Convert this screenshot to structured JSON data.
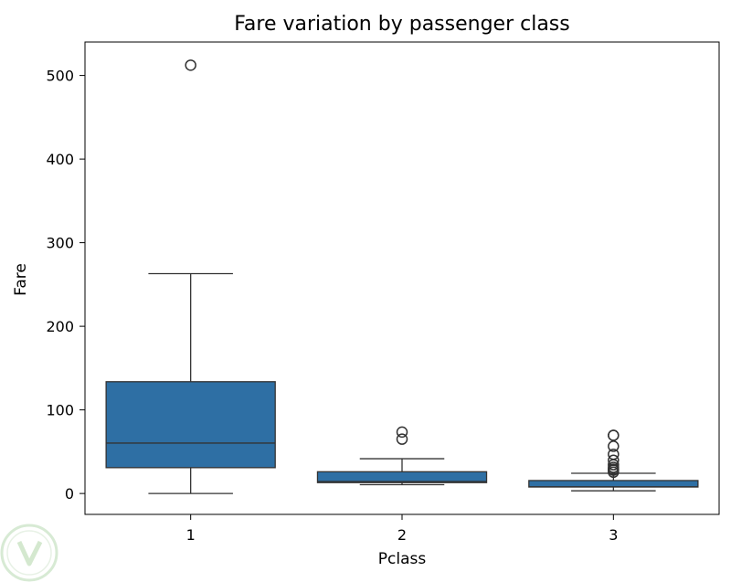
{
  "chart_data": {
    "type": "boxplot",
    "title": "Fare variation by passenger class",
    "xlabel": "Pclass",
    "ylabel": "Fare",
    "categories": [
      "1",
      "2",
      "3"
    ],
    "ylim": [
      -25,
      540
    ],
    "yticks": [
      0,
      100,
      200,
      300,
      400,
      500
    ],
    "grid": false,
    "color": "#2e6fa4",
    "boxes": [
      {
        "category": "1",
        "whisker_low": 0,
        "q1": 30.9,
        "median": 60.3,
        "q3": 133.7,
        "whisker_high": 263,
        "outliers": [
          512.3
        ]
      },
      {
        "category": "2",
        "whisker_low": 10.5,
        "q1": 13,
        "median": 14.3,
        "q3": 26,
        "whisker_high": 41.6,
        "outliers": [
          65,
          73.5
        ]
      },
      {
        "category": "3",
        "whisker_low": 3.2,
        "q1": 7.75,
        "median": 8.05,
        "q3": 15.5,
        "whisker_high": 24.2,
        "outliers": [
          25.5,
          27.9,
          29.1,
          31.3,
          34.4,
          39.7,
          46.9,
          56.5,
          69.55,
          69.55
        ]
      }
    ]
  }
}
